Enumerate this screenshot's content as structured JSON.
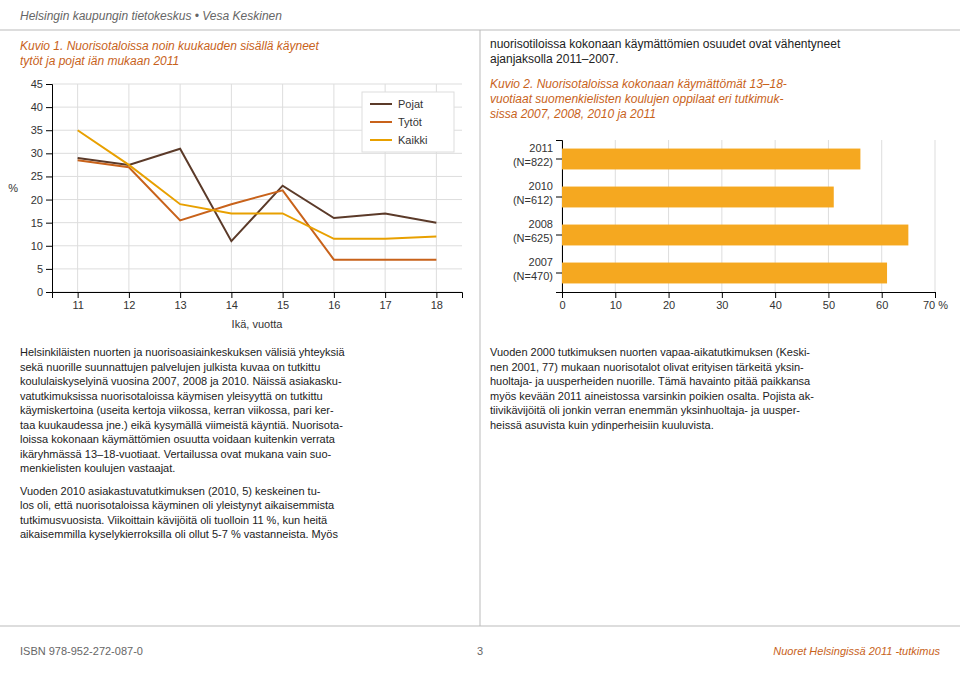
{
  "chart_data": [
    {
      "type": "line",
      "title": "Kuvio 1. Nuorisotaloissa noin kuukauden sisällä käyneet\ntytöt ja pojat iän mukaan 2011",
      "x_label": "Ikä, vuotta",
      "y_label": "%",
      "x": [
        11,
        12,
        13,
        14,
        15,
        16,
        17,
        18
      ],
      "series": [
        {
          "name": "Pojat",
          "color": "#5B3A29",
          "values": [
            29,
            27.5,
            31,
            11,
            23,
            16,
            17,
            15
          ]
        },
        {
          "name": "Tytöt",
          "color": "#C8621A",
          "values": [
            28.5,
            27,
            15.5,
            19,
            22,
            7,
            7,
            7
          ]
        },
        {
          "name": "Kaikki",
          "color": "#E8A000",
          "values": [
            35,
            27.5,
            19,
            17,
            17,
            11.5,
            11.5,
            12
          ]
        }
      ],
      "xlim": [
        10.5,
        18.5
      ],
      "xticks": [
        11,
        12,
        13,
        14,
        15,
        16,
        17,
        18
      ],
      "ylim": [
        0,
        45
      ],
      "yticks": [
        0,
        5,
        10,
        15,
        20,
        25,
        30,
        35,
        40,
        45
      ],
      "grid": true,
      "legend": "upper right"
    },
    {
      "type": "bar",
      "orientation": "horizontal",
      "title": "Kuvio 2. Nuorisotaloissa kokonaan käymättömät 13–18-\nvuotiaat suomenkielisten koulujen oppilaat eri tutkimuk-\nsissa 2007, 2008, 2010 ja 2011",
      "categories": [
        "2011\n(N=822)",
        "2010\n(N=612)",
        "2008\n(N=625)",
        "2007\n(N=470)"
      ],
      "values": [
        56,
        51,
        65,
        61
      ],
      "color": "#F5A820",
      "xlim": [
        0,
        70
      ],
      "xticks": [
        0,
        10,
        20,
        30,
        40,
        50,
        60,
        {
          "value": 70,
          "label": "70 %"
        }
      ],
      "grid": "x"
    }
  ],
  "header": "Helsingin kaupungin tietokeskus • Vesa Keskinen",
  "right_intro": [
    "nuorisotiloissa kokonaan käymättömien osuudet ovat vähentyneet",
    "ajanjaksolla 2011–2007."
  ],
  "body_left": [
    [
      "Helsinkiläisten nuorten ja nuorisoasiainkeskuksen välisiä yhteyksiä",
      "sekä nuorille suunnattujen palvelujen julkista kuvaa on tutkittu",
      "koululaiskyselyinä vuosina 2007, 2008 ja 2010. Näissä asiakasku-",
      "vatutkimuksissa nuorisotaloissa käymisen yleisyyttä on tutkittu",
      "käymiskertoina (useita kertoja viikossa, kerran viikossa, pari ker-",
      "taa kuukaudessa jne.) eikä kysymällä viimeistä käyntiä. Nuorisota-",
      "loissa kokonaan käymättömien osuutta voidaan kuitenkin verrata",
      "ikäryhmässä 13–18-vuotiaat. Vertailussa ovat mukana vain suo-",
      "menkielisten koulujen vastaajat."
    ],
    [
      "Vuoden 2010 asiakastuvatutkimuksen (2010, 5) keskeinen tu-",
      "los oli, että nuorisotaloissa käyminen oli yleistynyt aikaisemmista",
      "tutkimusvuosista. Viikoittain kävijöitä oli tuolloin 11 %, kun heitä",
      "aikaisemmilla kyselykierroksilla oli ollut 5-7 % vastanneista. Myös"
    ]
  ],
  "body_right": [
    [
      "Vuoden 2000 tutkimuksen nuorten vapaa-aikatutkimuksen (Keski-",
      "nen 2001, 77) mukaan nuorisotalot olivat erityisen tärkeitä yksin-",
      "huoltaja- ja uusperheiden nuorille. Tämä havainto pitää paikkansa",
      "myös kevään 2011 aineistossa varsinkin poikien osalta. Pojista ak-",
      "tiivikävijöitä oli jonkin verran enemmän yksinhuoltaja- ja uusper-",
      "heissä asuvista kuin ydinperheisiin kuuluvista."
    ]
  ],
  "footer": {
    "left": "ISBN 978-952-272-087-0",
    "center": "3",
    "right": "Nuoret Helsingissä 2011 -tutkimus"
  }
}
